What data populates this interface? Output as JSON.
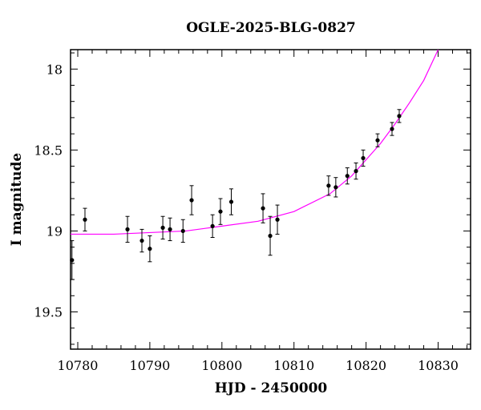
{
  "chart_data": {
    "type": "scatter",
    "title": "OGLE-2025-BLG-0827",
    "xlabel": "HJD - 2450000",
    "ylabel": "I magnitude",
    "xlim": [
      10779,
      10834.5
    ],
    "ylim": [
      19.73,
      17.88
    ],
    "y_inverted": true,
    "xticks": [
      10780,
      10790,
      10800,
      10810,
      10820,
      10830
    ],
    "yticks": [
      18,
      18.5,
      19,
      19.5
    ],
    "y_tick_labels": [
      "18",
      "18.5",
      "19",
      "19.5"
    ],
    "grid": false,
    "colors": {
      "points": "#000000",
      "model": "#ff00ff"
    },
    "series": [
      {
        "type": "scatter",
        "errorbars": true,
        "points": [
          {
            "x": 10779.2,
            "y": 19.18,
            "err": 0.12
          },
          {
            "x": 10781.0,
            "y": 18.93,
            "err": 0.07
          },
          {
            "x": 10786.9,
            "y": 18.99,
            "err": 0.08
          },
          {
            "x": 10788.9,
            "y": 19.06,
            "err": 0.07
          },
          {
            "x": 10790.0,
            "y": 19.11,
            "err": 0.08
          },
          {
            "x": 10791.8,
            "y": 18.98,
            "err": 0.07
          },
          {
            "x": 10792.8,
            "y": 18.99,
            "err": 0.07
          },
          {
            "x": 10794.6,
            "y": 19.0,
            "err": 0.07
          },
          {
            "x": 10795.8,
            "y": 18.81,
            "err": 0.09
          },
          {
            "x": 10798.7,
            "y": 18.97,
            "err": 0.07
          },
          {
            "x": 10799.8,
            "y": 18.88,
            "err": 0.08
          },
          {
            "x": 10801.3,
            "y": 18.82,
            "err": 0.08
          },
          {
            "x": 10805.7,
            "y": 18.86,
            "err": 0.09
          },
          {
            "x": 10806.7,
            "y": 19.03,
            "err": 0.12
          },
          {
            "x": 10807.7,
            "y": 18.93,
            "err": 0.09
          },
          {
            "x": 10814.8,
            "y": 18.72,
            "err": 0.06
          },
          {
            "x": 10815.8,
            "y": 18.73,
            "err": 0.06
          },
          {
            "x": 10817.4,
            "y": 18.66,
            "err": 0.05
          },
          {
            "x": 10818.6,
            "y": 18.63,
            "err": 0.05
          },
          {
            "x": 10819.6,
            "y": 18.55,
            "err": 0.05
          },
          {
            "x": 10821.6,
            "y": 18.44,
            "err": 0.04
          },
          {
            "x": 10823.6,
            "y": 18.37,
            "err": 0.04
          },
          {
            "x": 10824.6,
            "y": 18.29,
            "err": 0.04
          }
        ]
      },
      {
        "type": "line",
        "points": [
          {
            "x": 10779,
            "y": 19.02
          },
          {
            "x": 10785,
            "y": 19.02
          },
          {
            "x": 10790,
            "y": 19.01
          },
          {
            "x": 10795,
            "y": 19.0
          },
          {
            "x": 10800,
            "y": 18.97
          },
          {
            "x": 10805,
            "y": 18.94
          },
          {
            "x": 10810,
            "y": 18.88
          },
          {
            "x": 10815,
            "y": 18.77
          },
          {
            "x": 10818,
            "y": 18.66
          },
          {
            "x": 10820,
            "y": 18.56
          },
          {
            "x": 10822,
            "y": 18.46
          },
          {
            "x": 10824,
            "y": 18.34
          },
          {
            "x": 10826,
            "y": 18.21
          },
          {
            "x": 10828,
            "y": 18.07
          },
          {
            "x": 10830,
            "y": 17.88
          }
        ]
      }
    ]
  }
}
